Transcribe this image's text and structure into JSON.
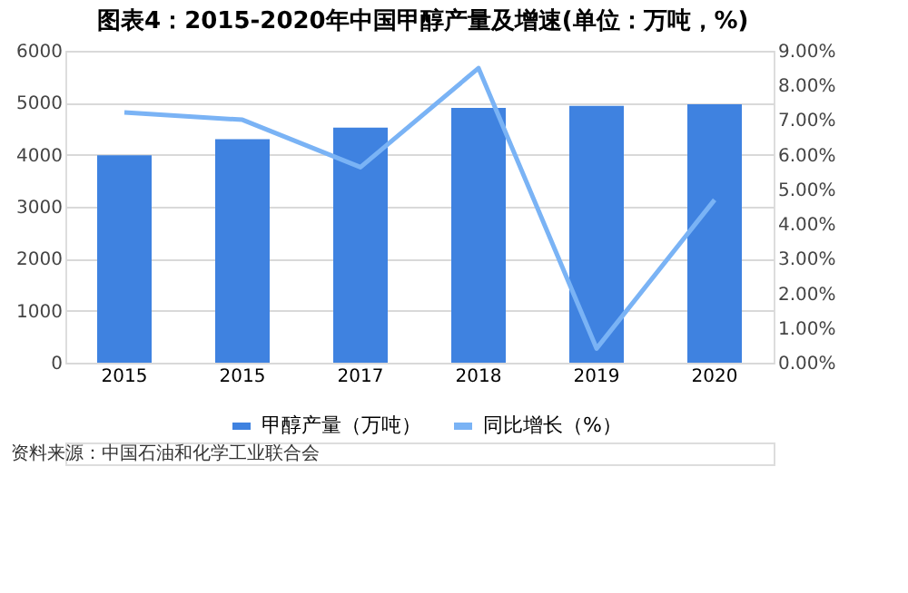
{
  "chart_data": {
    "type": "bar",
    "title": "图表4：2015-2020年中国甲醇产量及增速(单位：万吨，%)",
    "categories": [
      "2015",
      "2015",
      "2017",
      "2018",
      "2019",
      "2020"
    ],
    "series": [
      {
        "name": "甲醇产量（万吨）",
        "color": "#3f82e0",
        "values": [
          3990,
          4300,
          4520,
          4900,
          4940,
          4970
        ]
      },
      {
        "name": "同比增长（%）",
        "type": "line",
        "axis": "y2",
        "color": "#7ab3f5",
        "values": [
          7.22,
          7.01,
          5.64,
          8.5,
          0.41,
          4.7
        ]
      }
    ],
    "ylim": [
      0,
      6000
    ],
    "yticks": [
      0,
      1000,
      2000,
      3000,
      4000,
      5000,
      6000
    ],
    "y2lim": [
      0,
      9
    ],
    "y2ticks": [
      {
        "value": 0,
        "label": "0.00%"
      },
      {
        "value": 1,
        "label": "1.00%"
      },
      {
        "value": 2,
        "label": "2.00%"
      },
      {
        "value": 3,
        "label": "3.00%"
      },
      {
        "value": 4,
        "label": "4.00%"
      },
      {
        "value": 5,
        "label": "5.00%"
      },
      {
        "value": 6,
        "label": "6.00%"
      },
      {
        "value": 7,
        "label": "7.00%"
      },
      {
        "value": 8,
        "label": "8.00%"
      },
      {
        "value": 9,
        "label": "9.00%"
      }
    ],
    "grid": "y",
    "legend": "bottom",
    "marker": "none",
    "line_style": "solid",
    "annotations": [
      "资料来源：中国石油和化学工业联合会"
    ]
  }
}
